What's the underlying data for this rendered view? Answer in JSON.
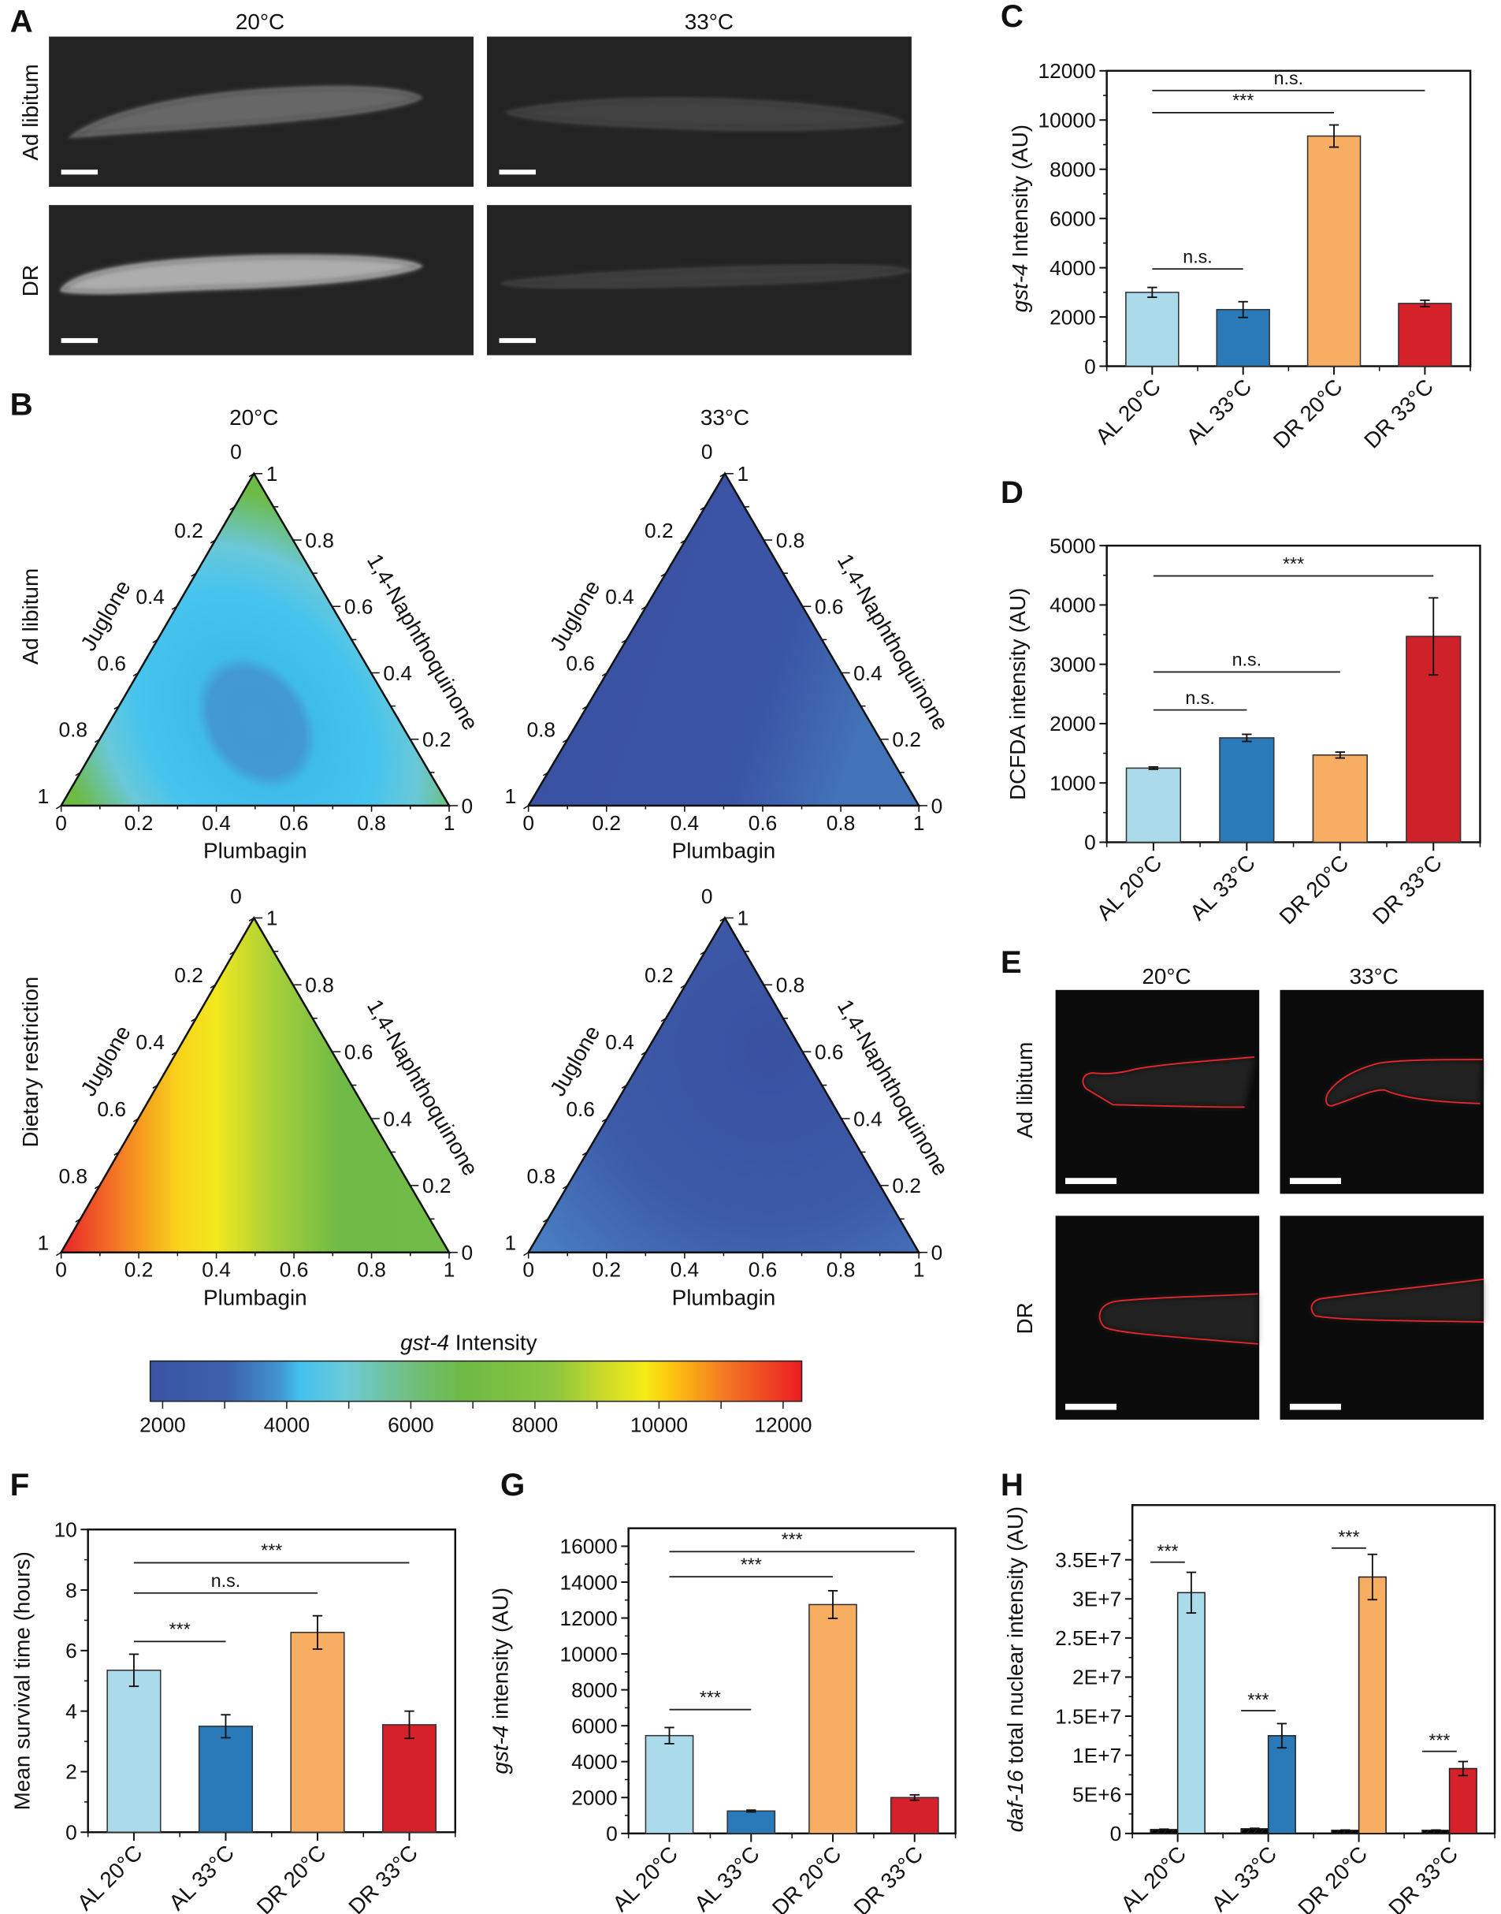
{
  "panel_labels": {
    "A": "A",
    "B": "B",
    "C": "C",
    "D": "D",
    "E": "E",
    "F": "F",
    "G": "G",
    "H": "H"
  },
  "panel_a": {
    "col_headers": [
      "20°C",
      "33°C"
    ],
    "row_labels": [
      "Ad libitum",
      "DR"
    ],
    "image_brightness": [
      [
        0.45,
        0.2
      ],
      [
        0.9,
        0.18
      ]
    ]
  },
  "panel_e": {
    "col_headers": [
      "20°C",
      "33°C"
    ],
    "row_labels": [
      "Ad libitum",
      "DR"
    ],
    "outline_color": "#e8252b"
  },
  "chart_data": [
    {
      "panel": "C",
      "type": "bar",
      "categories": [
        "AL 20°C",
        "AL 33°C",
        "DR 20°C",
        "DR 33°C"
      ],
      "values": [
        3000,
        2300,
        9350,
        2550
      ],
      "errors": [
        200,
        320,
        450,
        130
      ],
      "colors": [
        "#abdbea",
        "#2a7ab9",
        "#f8ae62",
        "#d7212a"
      ],
      "ylabel_italic": "gst-4",
      "ylabel_rest": " Intensity (AU)",
      "ylim": [
        0,
        12000
      ],
      "yticks": [
        0,
        2000,
        4000,
        6000,
        8000,
        10000,
        12000
      ],
      "ytick_labels": [
        "0",
        "2000",
        "4000",
        "6000",
        "8000",
        "10000",
        "12000"
      ],
      "significance": [
        {
          "from": 0,
          "to": 1,
          "y": 3950,
          "label": "n.s."
        },
        {
          "from": 0,
          "to": 2,
          "y": 10300,
          "label": "***"
        },
        {
          "from": 0,
          "to": 3,
          "y": 11200,
          "label": "n.s."
        }
      ]
    },
    {
      "panel": "D",
      "type": "bar",
      "categories": [
        "AL 20°C",
        "AL 33°C",
        "DR 20°C",
        "DR 33°C"
      ],
      "values": [
        1250,
        1760,
        1470,
        3470
      ],
      "errors": [
        20,
        60,
        50,
        650
      ],
      "colors": [
        "#abdbea",
        "#2a7ab9",
        "#f8ae62",
        "#cf2129"
      ],
      "ylabel_italic": "",
      "ylabel_rest": "DCFDA intensity (AU)",
      "ylim": [
        0,
        5000
      ],
      "yticks": [
        0,
        1000,
        2000,
        3000,
        4000,
        5000
      ],
      "ytick_labels": [
        "0",
        "1000",
        "2000",
        "3000",
        "4000",
        "5000"
      ],
      "significance": [
        {
          "from": 0,
          "to": 1,
          "y": 2230,
          "label": "n.s."
        },
        {
          "from": 0,
          "to": 2,
          "y": 2870,
          "label": "n.s."
        },
        {
          "from": 0,
          "to": 3,
          "y": 4490,
          "label": "***"
        }
      ]
    },
    {
      "panel": "F",
      "type": "bar",
      "categories": [
        "AL 20°C",
        "AL 33°C",
        "DR 20°C",
        "DR 33°C"
      ],
      "values": [
        5.35,
        3.5,
        6.6,
        3.55
      ],
      "errors": [
        0.53,
        0.38,
        0.55,
        0.45
      ],
      "colors": [
        "#abdbea",
        "#2a7ab9",
        "#f8ae62",
        "#d7212a"
      ],
      "ylabel_italic": "",
      "ylabel_rest": "Mean survival time (hours)",
      "ylim": [
        0,
        10
      ],
      "yticks": [
        0,
        2,
        4,
        6,
        8,
        10
      ],
      "ytick_labels": [
        "0",
        "2",
        "4",
        "6",
        "8",
        "10"
      ],
      "significance": [
        {
          "from": 0,
          "to": 1,
          "y": 6.3,
          "label": "***"
        },
        {
          "from": 0,
          "to": 2,
          "y": 7.9,
          "label": "n.s."
        },
        {
          "from": 0,
          "to": 3,
          "y": 8.9,
          "label": "***"
        }
      ]
    },
    {
      "panel": "G",
      "type": "bar",
      "categories": [
        "AL 20°C",
        "AL 33°C",
        "DR 20°C",
        "DR 33°C"
      ],
      "values": [
        5450,
        1250,
        12750,
        2000
      ],
      "errors": [
        450,
        50,
        770,
        150
      ],
      "colors": [
        "#abdbea",
        "#2a7ab9",
        "#f8ae62",
        "#d7212a"
      ],
      "ylabel_italic": "gst-4",
      "ylabel_rest": " intensity (AU)",
      "ylim": [
        0,
        17000
      ],
      "yticks": [
        0,
        2000,
        4000,
        6000,
        8000,
        10000,
        12000,
        14000,
        16000
      ],
      "ytick_labels": [
        "0",
        "2000",
        "4000",
        "6000",
        "8000",
        "10000",
        "12000",
        "14000",
        "16000"
      ],
      "significance": [
        {
          "from": 0,
          "to": 1,
          "y": 6900,
          "label": "***"
        },
        {
          "from": 0,
          "to": 2,
          "y": 14300,
          "label": "***"
        },
        {
          "from": 0,
          "to": 3,
          "y": 15700,
          "label": "***"
        }
      ]
    },
    {
      "panel": "H",
      "type": "bar",
      "categories": [
        "AL 20°C",
        "AL 33°C",
        "DR 20°C",
        "DR 33°C"
      ],
      "series": [
        {
          "values": [
            500000,
            600000,
            400000,
            400000
          ],
          "errors": [
            50000,
            60000,
            40000,
            40000
          ],
          "pattern": "hatched"
        },
        {
          "values": [
            30800000,
            12500000,
            32800000,
            8300000
          ],
          "errors": [
            2600000,
            1550000,
            2900000,
            900000
          ],
          "pattern": "solid"
        }
      ],
      "colors": [
        "#abdbea",
        "#2a7ab9",
        "#f8ae62",
        "#d7212a"
      ],
      "ylabel_italic": "daf-16",
      "ylabel_rest": " total nuclear intensity (AU)",
      "ylim": [
        0,
        42000000
      ],
      "yticks": [
        0,
        5000000,
        10000000,
        15000000,
        20000000,
        25000000,
        30000000,
        35000000
      ],
      "ytick_labels": [
        "0",
        "5E+6",
        "1E+7",
        "1.5E+7",
        "2E+7",
        "2.5E+7",
        "3E+7",
        "3.5E+7"
      ],
      "significance": [
        {
          "group": 0,
          "y": 34700000,
          "label": "***"
        },
        {
          "group": 1,
          "y": 15700000,
          "label": "***"
        },
        {
          "group": 2,
          "y": 36500000,
          "label": "***"
        },
        {
          "group": 3,
          "y": 10500000,
          "label": "***"
        }
      ]
    },
    {
      "panel": "B",
      "type": "ternary-contour",
      "col_titles": [
        "20°C",
        "33°C"
      ],
      "row_titles": [
        "Ad libitum",
        "Dietary restriction"
      ],
      "axes": {
        "bottom": "Plumbagin",
        "left": "Juglone",
        "right": "1,4-Naphthoquinone"
      },
      "tick_labels": [
        "0",
        "0.2",
        "0.4",
        "0.6",
        "0.8",
        "1"
      ],
      "colorbar": {
        "title_italic": "gst-4",
        "title_rest": " Intensity",
        "range": [
          1800,
          12300
        ],
        "ticks": [
          2000,
          4000,
          6000,
          8000,
          10000,
          12000
        ],
        "tick_labels": [
          "2000",
          "4000",
          "6000",
          "8000",
          "10000",
          "12000"
        ],
        "colormap": [
          "#3a52a3",
          "#3d6db4",
          "#42bdec",
          "#6ccad6",
          "#6dba44",
          "#a9d038",
          "#f6e91a",
          "#fbb31a",
          "#f26a25",
          "#ec1c24"
        ]
      }
    }
  ]
}
